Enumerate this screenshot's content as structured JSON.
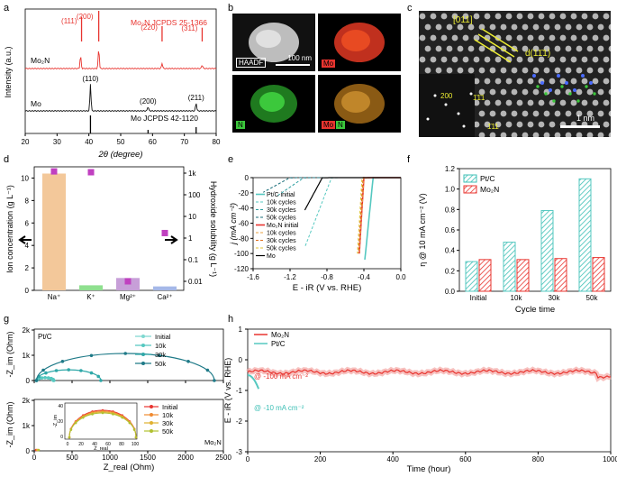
{
  "panel_letters": [
    "a",
    "b",
    "c",
    "d",
    "e",
    "f",
    "g",
    "h"
  ],
  "colors": {
    "mo2n": "#e8342f",
    "mo": "#111111",
    "ptc": "#55c8c0",
    "hatch_ptc": "#3cbfb5",
    "hatch_mo2n": "#e8342f",
    "na": "#f3c89a",
    "k": "#8fe08f",
    "mg": "#c79fd8",
    "ca": "#a5b8e8",
    "square": "#c040c0"
  },
  "panel_b": {
    "haadf_label": "HAADF",
    "scalebar": "100 nm",
    "mo_label": "Mo",
    "n_label": "N",
    "overlay_mo": "Mo",
    "overlay_n": "N"
  },
  "panel_c": {
    "direction": "[011]",
    "plane": "d(11̄1)",
    "fft_spots": [
      "200",
      "1̄1̄1",
      "1̄11"
    ],
    "scalebar": "1 nm"
  },
  "chart_data": [
    {
      "id": "a",
      "type": "line",
      "xlabel": "2θ (degree)",
      "ylabel": "Intensity (a.u.)",
      "xlim": [
        20,
        80
      ],
      "xticks": [
        20,
        30,
        40,
        50,
        60,
        70,
        80
      ],
      "ref_mo2n": {
        "label": "Mo₂N JCPDS 25-1366",
        "peaks": [
          [
            37.7,
            "(111)",
            0.8
          ],
          [
            43.1,
            "(200)",
            1.0
          ],
          [
            63.0,
            "(220)",
            0.5
          ],
          [
            75.6,
            "(311)",
            0.45
          ]
        ]
      },
      "ref_mo": {
        "label": "Mo JCPDS 42-1120",
        "peaks": [
          [
            40.5,
            1.0
          ],
          [
            58.6,
            0.2
          ],
          [
            73.7,
            0.35
          ]
        ]
      },
      "series": [
        {
          "name": "Mo₂N",
          "peaks": [
            [
              37.4,
              "(111)",
              0.35
            ],
            [
              43.1,
              "(200)",
              0.55
            ],
            [
              63.0,
              "(220)",
              0.15
            ],
            [
              75.6,
              "(311)",
              0.1
            ]
          ]
        },
        {
          "name": "Mo",
          "peaks": [
            [
              40.5,
              "(110)",
              0.75
            ],
            [
              58.6,
              "(200)",
              0.12
            ],
            [
              73.7,
              "(211)",
              0.22
            ]
          ]
        }
      ]
    },
    {
      "id": "d",
      "type": "bar",
      "categories": [
        "Na⁺",
        "K⁺",
        "Mg²⁺",
        "Ca²⁺"
      ],
      "values": [
        10.4,
        0.45,
        1.1,
        0.35
      ],
      "ylabel": "Ion concentration (g L⁻¹)",
      "ylim": [
        0,
        11
      ],
      "yticks": [
        0,
        2,
        4,
        6,
        8,
        10
      ],
      "y2label": "Hydroxide solubility (g L⁻¹)",
      "y2ticks": [
        "0.01",
        "0.1",
        "1",
        "10",
        "100",
        "1k"
      ],
      "solubility": [
        1200,
        1100,
        0.01,
        1.7
      ]
    },
    {
      "id": "e",
      "type": "line",
      "xlabel": "E - iR (V vs. RHE)",
      "ylabel": "j (mA cm⁻²)",
      "xlim": [
        -1.6,
        0
      ],
      "ylim": [
        -120,
        0
      ],
      "xticks": [
        "-1.6",
        "-1.2",
        "-0.8",
        "-0.4",
        "0.0"
      ],
      "yticks": [
        "0",
        "-20",
        "-40",
        "-60",
        "-80",
        "-100",
        "-120"
      ],
      "series": [
        {
          "name": "Pt/C initial",
          "onset": -0.3,
          "slope": "steep"
        },
        {
          "name": "10k cycles",
          "onset": -0.75
        },
        {
          "name": "30k cycles",
          "onset": -1.05
        },
        {
          "name": "50k cycles",
          "onset": -1.2
        },
        {
          "name": "Mo₂N initial",
          "onset": -0.4
        },
        {
          "name": "10k cycles",
          "onset": -0.4
        },
        {
          "name": "30k cycles",
          "onset": -0.41
        },
        {
          "name": "50k cycles",
          "onset": -0.42
        },
        {
          "name": "Mo",
          "onset": -0.85
        }
      ]
    },
    {
      "id": "f",
      "type": "bar",
      "xlabel": "Cycle time",
      "ylabel": "η @ 10 mA cm⁻² (V)",
      "ylim": [
        0,
        1.2
      ],
      "yticks": [
        "0.0",
        "0.2",
        "0.4",
        "0.6",
        "0.8",
        "1.0",
        "1.2"
      ],
      "categories": [
        "Initial",
        "10k",
        "30k",
        "50k"
      ],
      "series": [
        {
          "name": "Pt/C",
          "values": [
            0.29,
            0.48,
            0.79,
            1.1
          ]
        },
        {
          "name": "Mo₂N",
          "values": [
            0.31,
            0.31,
            0.32,
            0.33
          ]
        }
      ]
    },
    {
      "id": "g",
      "type": "scatter",
      "xlabel": "Z_real (Ohm)",
      "ylabel": "-Z_im (Ohm)",
      "xlim": [
        0,
        2500
      ],
      "ylim": [
        0,
        2000
      ],
      "xticks": [
        "0",
        "500",
        "1000",
        "1500",
        "2000",
        "2500"
      ],
      "yticks": [
        "0",
        "1k",
        "2k"
      ],
      "top": {
        "label": "Pt/C",
        "series": [
          {
            "name": "Initial",
            "diam": 220
          },
          {
            "name": "10k",
            "diam": 230
          },
          {
            "name": "30k",
            "diam": 850
          },
          {
            "name": "50k",
            "diam": 2350
          }
        ]
      },
      "bottom": {
        "label": "Mo₂N",
        "series": [
          "Initial",
          "10k",
          "30k",
          "50k"
        ],
        "inset_xlim": [
          0,
          100
        ],
        "inset_ylim": [
          0,
          40
        ],
        "inset_xlabel": "Z_real",
        "inset_ylabel": "-Z_im",
        "inset_xticks": [
          "0",
          "20",
          "40",
          "60",
          "80",
          "100"
        ],
        "inset_yticks": [
          "0",
          "20",
          "40"
        ]
      }
    },
    {
      "id": "h",
      "type": "line",
      "xlabel": "Time (hour)",
      "ylabel": "E - iR (V vs. RHE)",
      "xlim": [
        0,
        1000
      ],
      "ylim": [
        -3,
        1
      ],
      "xticks": [
        "0",
        "200",
        "400",
        "600",
        "800",
        "1000"
      ],
      "yticks": [
        "1",
        "0",
        "-1",
        "-2",
        "-3"
      ],
      "series": [
        {
          "name": "Mo₂N",
          "level": -0.4,
          "duration": 1000,
          "annotation": "@ -100 mA cm⁻²"
        },
        {
          "name": "Pt/C",
          "level": -0.5,
          "duration": 30,
          "end": -0.9,
          "annotation": "@ -10 mA cm⁻²"
        }
      ]
    }
  ]
}
